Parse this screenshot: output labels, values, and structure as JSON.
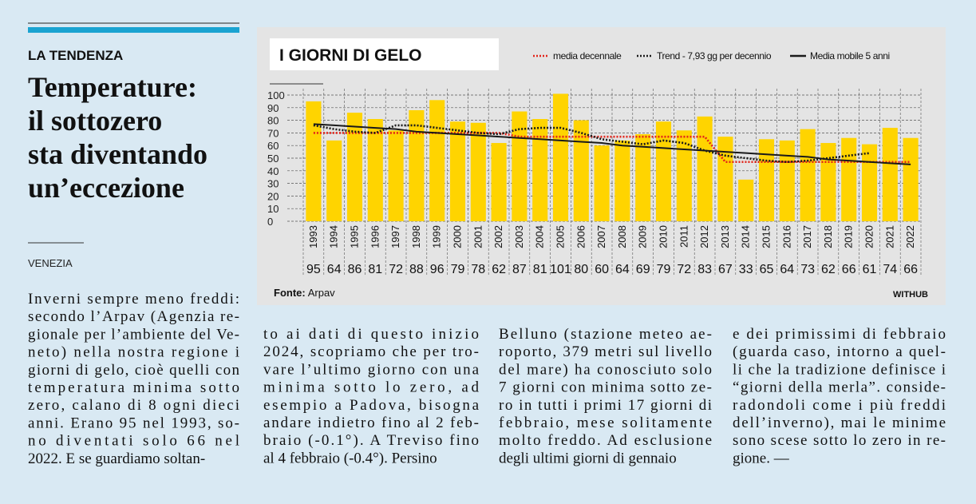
{
  "header": {
    "kicker": "LA TENDENZA",
    "headline": [
      "Temperature:",
      "il sottozero",
      "sta diventando",
      "un’eccezione"
    ],
    "dateline": "VENEZIA"
  },
  "article": {
    "columns": [
      [
        "Inverni sempre meno freddi:",
        "secondo l’Arpav (Agenzia re-",
        "gionale per l’ambiente del Ve-",
        "neto) nella nostra regione i",
        "giorni di gelo, cioè quelli con",
        "temperatura minima sotto",
        "zero, calano di 8 ogni dieci",
        "anni. Erano 95 nel 1993, so-",
        "no diventati solo 66 nel",
        "2022. E se guardiamo soltan-"
      ],
      [
        "to ai dati di questo inizio",
        "2024, scopriamo che per tro-",
        "vare l’ultimo giorno con una",
        "minima sotto lo zero, ad",
        "esempio a Padova, bisogna",
        "andare indietro fino al 2 feb-",
        "braio (-0.1°). A Treviso fino",
        "al 4 febbraio (-0.4°). Persino"
      ],
      [
        "Belluno (stazione meteo ae-",
        "roporto, 379 metri sul livello",
        "del mare) ha conosciuto solo",
        "7 giorni con minima sotto ze-",
        "ro in tutti i primi 17 giorni di",
        "febbraio, mese solitamente",
        "molto freddo. Ad esclusione",
        "degli ultimi giorni di gennaio"
      ],
      [
        "e dei primissimi di febbraio",
        "(guarda caso, intorno a quel-",
        "li che la tradizione definisce i",
        "“giorni della merla”. conside-",
        "radondoli come i più freddi",
        "dell’inverno), mai le minime",
        "sono scese sotto lo zero in re-",
        "gione. —"
      ]
    ]
  },
  "chart_data": {
    "type": "bar",
    "title": "I GIORNI DI GELO",
    "categories": [
      "1993",
      "1994",
      "1995",
      "1996",
      "1997",
      "1998",
      "1999",
      "2000",
      "2001",
      "2002",
      "2003",
      "2004",
      "2005",
      "2006",
      "2007",
      "2008",
      "2009",
      "2010",
      "2011",
      "2012",
      "2013",
      "2014",
      "2015",
      "2016",
      "2017",
      "2018",
      "2019",
      "2020",
      "2021",
      "2022"
    ],
    "values": [
      95,
      64,
      86,
      81,
      72,
      88,
      96,
      79,
      78,
      62,
      87,
      81,
      101,
      80,
      60,
      64,
      69,
      79,
      72,
      83,
      67,
      33,
      65,
      64,
      73,
      62,
      66,
      61,
      74,
      66
    ],
    "color": "#ffd400",
    "ylim": [
      0,
      100
    ],
    "yticks": [
      0,
      10,
      20,
      30,
      40,
      50,
      60,
      70,
      80,
      90,
      100
    ],
    "grid": true,
    "lines": [
      {
        "name": "media decennale",
        "color": "#e2231a",
        "style": "dotted",
        "values": [
          70,
          70,
          70,
          70,
          70,
          70,
          70,
          70,
          70,
          70,
          67,
          67,
          67,
          67,
          67,
          67,
          67,
          67,
          67,
          67,
          47,
          47,
          47,
          47,
          47,
          47,
          47,
          47,
          47,
          47
        ]
      },
      {
        "name": "Trend - 7,93 gg per decennio",
        "color": "#1a1a1a",
        "style": "dotted",
        "values": [
          76,
          73,
          71,
          70,
          76,
          76,
          74,
          72,
          70,
          69,
          73,
          74,
          74,
          70,
          65,
          63,
          61,
          64,
          62,
          56,
          52,
          50,
          48,
          47,
          48,
          50,
          52,
          54,
          null,
          null
        ]
      },
      {
        "name": "Media mobile 5 anni",
        "color": "#1a1a1a",
        "style": "solid",
        "values": [
          77,
          76,
          75,
          74,
          73,
          71,
          70,
          69,
          68,
          67,
          66,
          65,
          64,
          63,
          62,
          60,
          59,
          58,
          57,
          56,
          55,
          54,
          53,
          52,
          51,
          49,
          48,
          47,
          46,
          45
        ]
      }
    ],
    "source_label": "Fonte:",
    "source": "Arpav",
    "credit": "WITHUB"
  }
}
